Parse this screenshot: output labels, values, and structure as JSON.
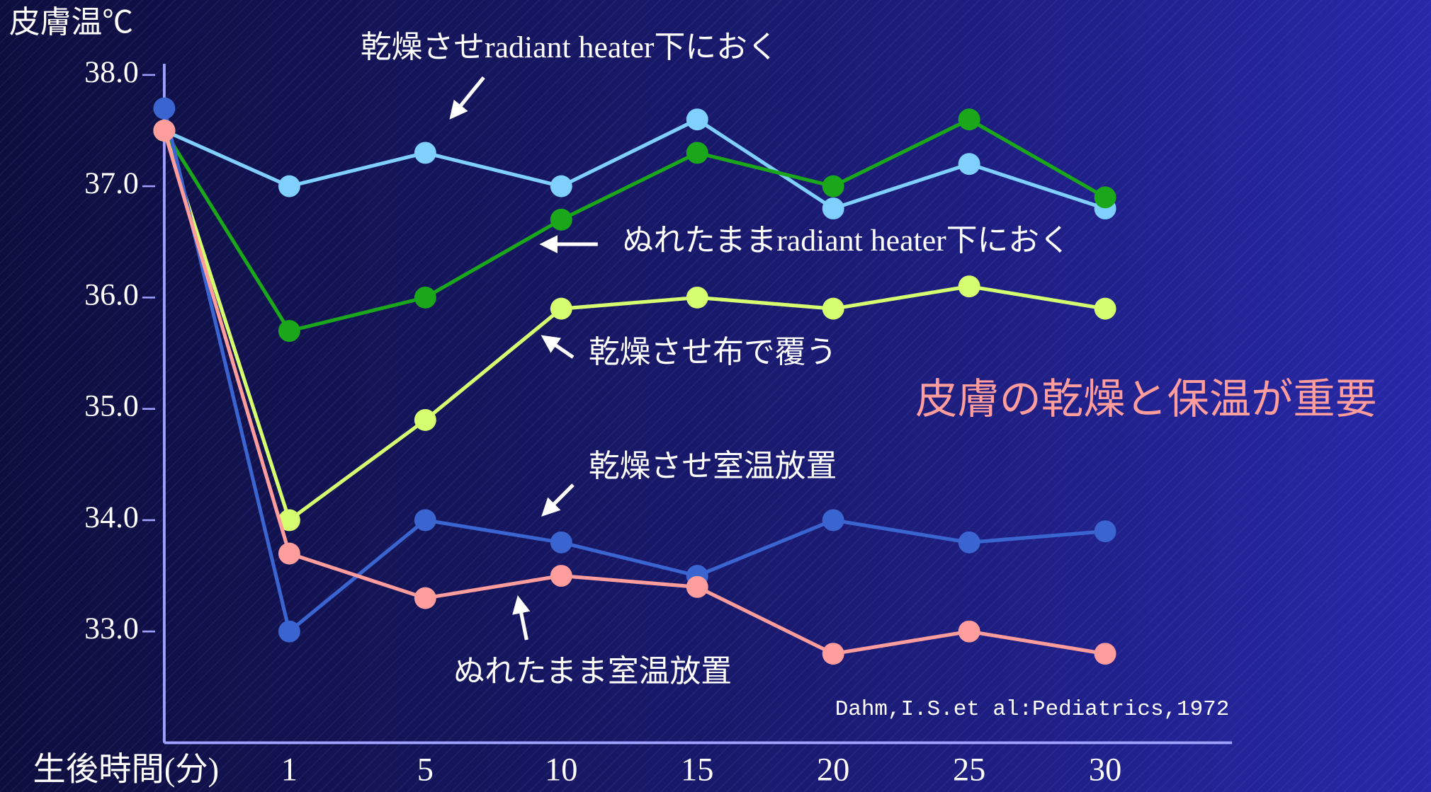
{
  "chart_data": {
    "type": "line",
    "y_label": "皮膚温℃",
    "x_label": "生後時間(分)",
    "categories": [
      null,
      "1",
      "5",
      "10",
      "15",
      "20",
      "25",
      "30"
    ],
    "ylim": [
      32,
      38.1
    ],
    "yticks": [
      {
        "value": 33,
        "label": "33.0"
      },
      {
        "value": 34,
        "label": "34.0"
      },
      {
        "value": 35,
        "label": "35.0"
      },
      {
        "value": 36,
        "label": "36.0"
      },
      {
        "value": 37,
        "label": "37.0"
      },
      {
        "value": 38,
        "label": "38.0"
      }
    ],
    "grid": false,
    "series": [
      {
        "name": "乾燥させradiant heater下におく",
        "color": "#7fd0ff",
        "values": [
          37.5,
          37.0,
          37.3,
          37.0,
          37.6,
          36.8,
          37.2,
          36.8
        ]
      },
      {
        "name": "ぬれたままradiant heater下におく",
        "color": "#1aa81a",
        "values": [
          37.5,
          35.7,
          36.0,
          36.7,
          37.3,
          37.0,
          37.6,
          36.9
        ]
      },
      {
        "name": "乾燥させ布で覆う",
        "color": "#d6ff70",
        "values": [
          37.5,
          34.0,
          34.9,
          35.9,
          36.0,
          35.9,
          36.1,
          35.9
        ]
      },
      {
        "name": "乾燥させ室温放置",
        "color": "#3a64d0",
        "values": [
          37.7,
          33.0,
          34.0,
          33.8,
          33.5,
          34.0,
          33.8,
          33.9
        ]
      },
      {
        "name": "ぬれたまま室温放置",
        "color": "#ff9c9c",
        "values": [
          37.5,
          33.7,
          33.3,
          33.5,
          33.4,
          32.8,
          33.0,
          32.8
        ]
      }
    ],
    "annotations": [
      "皮膚の乾燥と保温が重要"
    ],
    "source": "Dahm,I.S.et al:Pediatrics,1972"
  }
}
